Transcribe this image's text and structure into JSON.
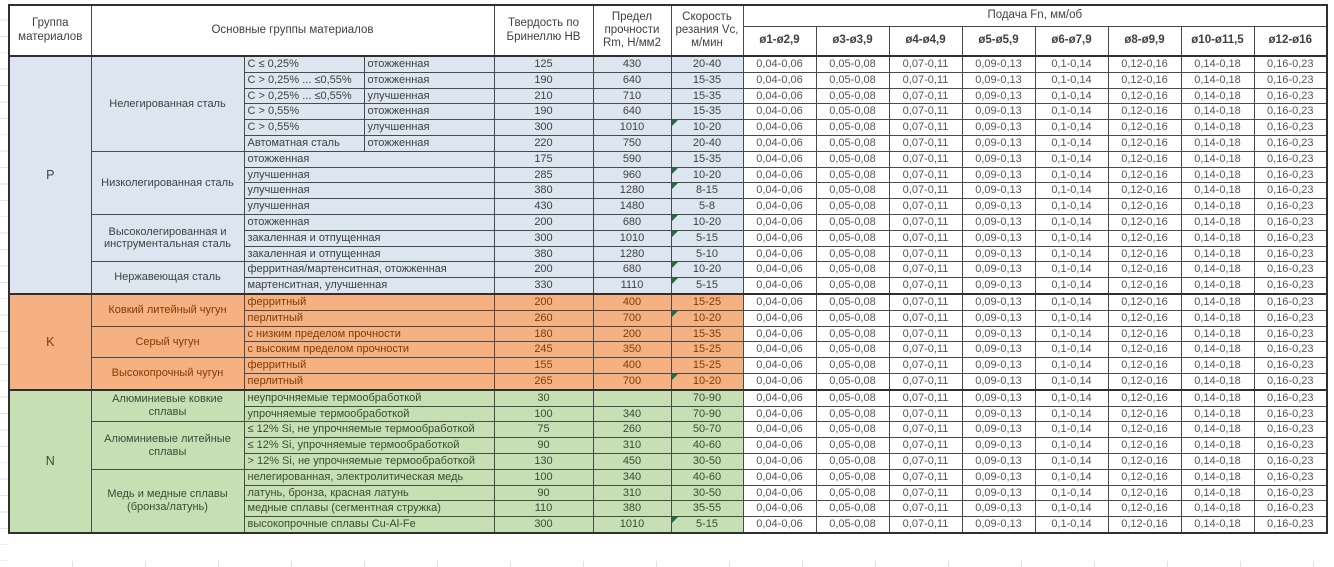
{
  "table": {
    "header": {
      "group": "Группа материалов",
      "main_groups": "Основные группы материалов",
      "hardness": "Твердость по Бринеллю HB",
      "strength": "Предел прочности Rm, Н/мм2",
      "speed": "Скорость резания Vc, м/мин",
      "feed": "Подача Fn, мм/об",
      "diameters": [
        "ø1-ø2,9",
        "ø3-ø3,9",
        "ø4-ø4,9",
        "ø5-ø5,9",
        "ø6-ø7,9",
        "ø8-ø9,9",
        "ø10-ø11,5",
        "ø12-ø16"
      ]
    },
    "feed_values": [
      "0,04-0,06",
      "0,05-0,08",
      "0,07-0,11",
      "0,09-0,13",
      "0,1-0,14",
      "0,12-0,16",
      "0,14-0,18",
      "0,16-0,23"
    ],
    "comment_marker_color": "#1d6f42",
    "sections": [
      {
        "code": "P",
        "bg": "#dce6f1",
        "text_color": "#404040",
        "families": [
          {
            "name": "Нелегированная сталь",
            "rows": [
              {
                "cells": [
                  "C ≤ 0,25%",
                  "отожженная"
                ],
                "hb": "125",
                "rm": "430",
                "vc": "20-40",
                "note": false
              },
              {
                "cells": [
                  "C > 0,25% ... ≤0,55%",
                  "отожженная"
                ],
                "hb": "190",
                "rm": "640",
                "vc": "15-35",
                "note": false
              },
              {
                "cells": [
                  "C > 0,25% ... ≤0,55%",
                  "улучшенная"
                ],
                "hb": "210",
                "rm": "710",
                "vc": "15-35",
                "note": false
              },
              {
                "cells": [
                  "C > 0,55%",
                  "отожженная"
                ],
                "hb": "190",
                "rm": "640",
                "vc": "15-35",
                "note": false
              },
              {
                "cells": [
                  "C > 0,55%",
                  "улучшенная"
                ],
                "hb": "300",
                "rm": "1010",
                "vc": "10-20",
                "note": true
              },
              {
                "cells": [
                  "Автоматная сталь",
                  "отожженная"
                ],
                "hb": "220",
                "rm": "750",
                "vc": "20-40",
                "note": false
              }
            ]
          },
          {
            "name": "Низколегированная сталь",
            "rows": [
              {
                "cells": [
                  "отожженная"
                ],
                "hb": "175",
                "rm": "590",
                "vc": "15-35",
                "note": false
              },
              {
                "cells": [
                  "улучшенная"
                ],
                "hb": "285",
                "rm": "960",
                "vc": "10-20",
                "note": true
              },
              {
                "cells": [
                  "улучшенная"
                ],
                "hb": "380",
                "rm": "1280",
                "vc": "8-15",
                "note": true
              },
              {
                "cells": [
                  "улучшенная"
                ],
                "hb": "430",
                "rm": "1480",
                "vc": "5-8",
                "note": false
              }
            ]
          },
          {
            "name": "Высоколегированная и инструментальная сталь",
            "rows": [
              {
                "cells": [
                  "отожженная"
                ],
                "hb": "200",
                "rm": "680",
                "vc": "10-20",
                "note": true
              },
              {
                "cells": [
                  "закаленная и отпущенная"
                ],
                "hb": "300",
                "rm": "1010",
                "vc": "5-15",
                "note": true
              },
              {
                "cells": [
                  "закаленная и отпущенная"
                ],
                "hb": "380",
                "rm": "1280",
                "vc": "5-10",
                "note": false
              }
            ]
          },
          {
            "name": "Нержавеющая сталь",
            "rows": [
              {
                "cells": [
                  "ферритная/мартенситная, отожженная"
                ],
                "hb": "200",
                "rm": "680",
                "vc": "10-20",
                "note": true
              },
              {
                "cells": [
                  "мартенситная, улучшенная"
                ],
                "hb": "330",
                "rm": "1110",
                "vc": "5-15",
                "note": true
              }
            ]
          }
        ]
      },
      {
        "code": "K",
        "bg": "#f6b183",
        "text_color": "#7c3d00",
        "families": [
          {
            "name": "Ковкий литейный чугун",
            "rows": [
              {
                "cells": [
                  "ферритный"
                ],
                "hb": "200",
                "rm": "400",
                "vc": "15-25",
                "note": false
              },
              {
                "cells": [
                  "перлитный"
                ],
                "hb": "260",
                "rm": "700",
                "vc": "10-20",
                "note": true
              }
            ]
          },
          {
            "name": "Серый чугун",
            "rows": [
              {
                "cells": [
                  "с низким пределом прочности"
                ],
                "hb": "180",
                "rm": "200",
                "vc": "15-35",
                "note": false
              },
              {
                "cells": [
                  "с высоким пределом прочности"
                ],
                "hb": "245",
                "rm": "350",
                "vc": "15-25",
                "note": false
              }
            ]
          },
          {
            "name": "Высокопрочный чугун",
            "rows": [
              {
                "cells": [
                  "ферритный"
                ],
                "hb": "155",
                "rm": "400",
                "vc": "15-25",
                "note": false
              },
              {
                "cells": [
                  "перлитный"
                ],
                "hb": "265",
                "rm": "700",
                "vc": "10-20",
                "note": true
              }
            ]
          }
        ]
      },
      {
        "code": "N",
        "bg": "#c6e0b4",
        "text_color": "#3a4a35",
        "families": [
          {
            "name": "Алюминиевые ковкие сплавы",
            "rows": [
              {
                "cells": [
                  "неупрочняемые термообработкой"
                ],
                "hb": "30",
                "rm": "",
                "vc": "70-90",
                "note": false
              },
              {
                "cells": [
                  "упрочняемые термообработкой"
                ],
                "hb": "100",
                "rm": "340",
                "vc": "70-90",
                "note": false
              }
            ]
          },
          {
            "name": "Алюминиевые литейные сплавы",
            "rows": [
              {
                "cells": [
                  "≤ 12% Si, не упрочняемые термообработкой"
                ],
                "hb": "75",
                "rm": "260",
                "vc": "50-70",
                "note": false
              },
              {
                "cells": [
                  "≤ 12% Si, упрочняемые термообработкой"
                ],
                "hb": "90",
                "rm": "310",
                "vc": "40-60",
                "note": false
              },
              {
                "cells": [
                  "> 12% Si, не упрочняемые термообработкой"
                ],
                "hb": "130",
                "rm": "450",
                "vc": "30-50",
                "note": false
              }
            ]
          },
          {
            "name": "Медь и медные сплавы (бронза/латунь)",
            "rows": [
              {
                "cells": [
                  "нелегированная, электролитическая медь"
                ],
                "hb": "100",
                "rm": "340",
                "vc": "40-60",
                "note": false
              },
              {
                "cells": [
                  "латунь, бронза, красная латунь"
                ],
                "hb": "90",
                "rm": "310",
                "vc": "30-50",
                "note": false
              },
              {
                "cells": [
                  "медные сплавы (сегментная стружка)"
                ],
                "hb": "110",
                "rm": "380",
                "vc": "35-55",
                "note": false
              },
              {
                "cells": [
                  "высокопрочные сплавы Cu-Al-Fe"
                ],
                "hb": "300",
                "rm": "1010",
                "vc": "5-15",
                "note": true
              }
            ]
          }
        ]
      }
    ]
  }
}
